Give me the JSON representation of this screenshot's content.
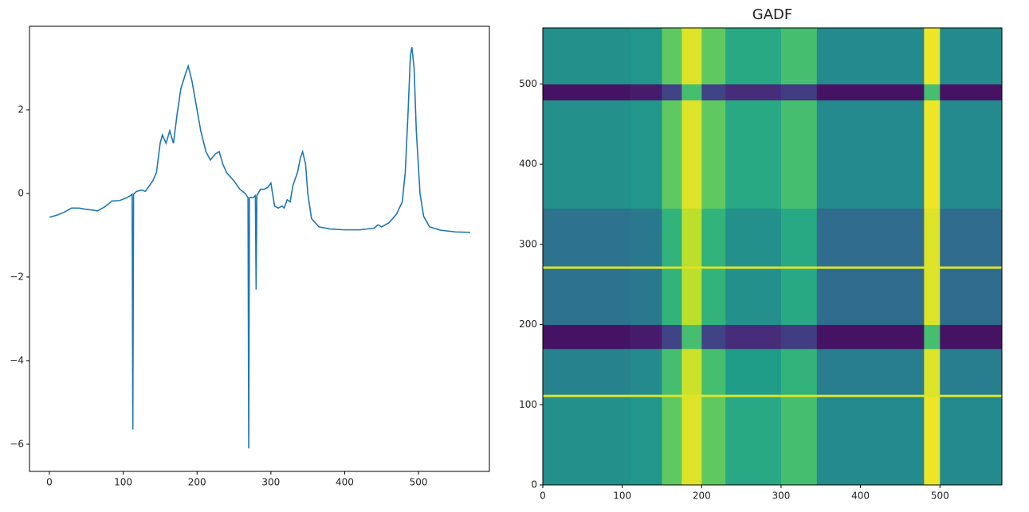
{
  "chart_data": [
    {
      "type": "line",
      "x": [
        0,
        10,
        20,
        30,
        40,
        50,
        60,
        65,
        75,
        85,
        95,
        105,
        110,
        112,
        113,
        114,
        118,
        125,
        130,
        140,
        145,
        150,
        153,
        158,
        163,
        168,
        173,
        178,
        185,
        188,
        193,
        198,
        205,
        212,
        218,
        225,
        230,
        235,
        240,
        245,
        250,
        258,
        265,
        269,
        270,
        271,
        276,
        279,
        280,
        281,
        286,
        291,
        296,
        300,
        305,
        310,
        315,
        318,
        322,
        326,
        330,
        336,
        340,
        343,
        347,
        350,
        355,
        365,
        380,
        400,
        420,
        440,
        445,
        450,
        460,
        470,
        478,
        482,
        486,
        489,
        491,
        494,
        497,
        502,
        507,
        515,
        530,
        550,
        570
      ],
      "series": [
        {
          "color": "#1f77b4",
          "values": [
            -0.57,
            -0.52,
            -0.45,
            -0.35,
            -0.35,
            -0.38,
            -0.4,
            -0.42,
            -0.32,
            -0.18,
            -0.17,
            -0.1,
            -0.05,
            -0.02,
            -5.65,
            -0.02,
            0.05,
            0.08,
            0.05,
            0.3,
            0.5,
            1.2,
            1.4,
            1.2,
            1.5,
            1.2,
            1.9,
            2.5,
            2.9,
            3.05,
            2.7,
            2.2,
            1.5,
            1.0,
            0.8,
            0.95,
            1.0,
            0.7,
            0.5,
            0.4,
            0.3,
            0.1,
            0.0,
            -0.1,
            -6.1,
            -0.1,
            -0.1,
            -0.05,
            -2.3,
            -0.05,
            0.1,
            0.1,
            0.15,
            0.25,
            -0.3,
            -0.35,
            -0.3,
            -0.35,
            -0.15,
            -0.2,
            0.2,
            0.5,
            0.85,
            1.0,
            0.7,
            0.0,
            -0.6,
            -0.8,
            -0.85,
            -0.87,
            -0.87,
            -0.83,
            -0.75,
            -0.8,
            -0.7,
            -0.5,
            -0.2,
            0.5,
            2.0,
            3.3,
            3.5,
            3.0,
            1.5,
            0.0,
            -0.55,
            -0.8,
            -0.88,
            -0.92,
            -0.93
          ]
        }
      ],
      "xlim": [
        -27,
        596
      ],
      "ylim": [
        -6.65,
        4.0
      ],
      "xticks": [
        0,
        100,
        200,
        300,
        400,
        500
      ],
      "yticks": [
        {
          "value": -6,
          "label": "−6"
        },
        {
          "value": -4,
          "label": "−4"
        },
        {
          "value": -2,
          "label": "−2"
        },
        0,
        2
      ]
    },
    {
      "type": "heatmap",
      "title": "GADF",
      "colormap": "viridis",
      "zlim": [
        -1,
        1
      ],
      "x_edges": [
        0,
        110,
        150,
        175,
        200,
        230,
        300,
        345,
        480,
        500,
        578
      ],
      "y_edges": [
        0,
        110,
        113,
        170,
        200,
        270,
        273,
        345,
        480,
        500,
        570
      ],
      "z": [
        [
          0.0,
          0.05,
          0.5,
          0.9,
          0.5,
          0.2,
          0.4,
          -0.05,
          0.95,
          -0.05
        ],
        [
          0.9,
          0.9,
          0.9,
          0.9,
          0.9,
          0.9,
          0.9,
          0.9,
          0.9,
          0.9
        ],
        [
          -0.1,
          -0.05,
          0.4,
          0.85,
          0.4,
          0.1,
          0.3,
          -0.15,
          0.9,
          -0.15
        ],
        [
          -0.9,
          -0.85,
          -0.6,
          0.4,
          -0.6,
          -0.75,
          -0.65,
          -0.9,
          0.4,
          -0.9
        ],
        [
          -0.25,
          -0.2,
          0.3,
          0.8,
          0.3,
          0.0,
          0.2,
          -0.3,
          0.9,
          -0.3
        ],
        [
          0.9,
          0.9,
          0.9,
          0.9,
          0.9,
          0.9,
          0.9,
          0.9,
          0.9,
          0.9
        ],
        [
          -0.25,
          -0.2,
          0.3,
          0.8,
          0.3,
          0.0,
          0.2,
          -0.3,
          0.9,
          -0.3
        ],
        [
          0.0,
          0.05,
          0.5,
          0.9,
          0.5,
          0.2,
          0.4,
          -0.05,
          0.95,
          -0.05
        ],
        [
          -0.9,
          -0.85,
          -0.6,
          0.4,
          -0.6,
          -0.75,
          -0.65,
          -0.9,
          0.4,
          -0.9
        ],
        [
          0.0,
          0.05,
          0.5,
          0.9,
          0.5,
          0.2,
          0.4,
          -0.05,
          0.95,
          -0.05
        ]
      ],
      "xlim": [
        0,
        578
      ],
      "ylim": [
        0,
        570
      ],
      "xticks": [
        0,
        100,
        200,
        300,
        400,
        500
      ],
      "yticks": [
        0,
        100,
        200,
        300,
        400,
        500
      ]
    }
  ]
}
